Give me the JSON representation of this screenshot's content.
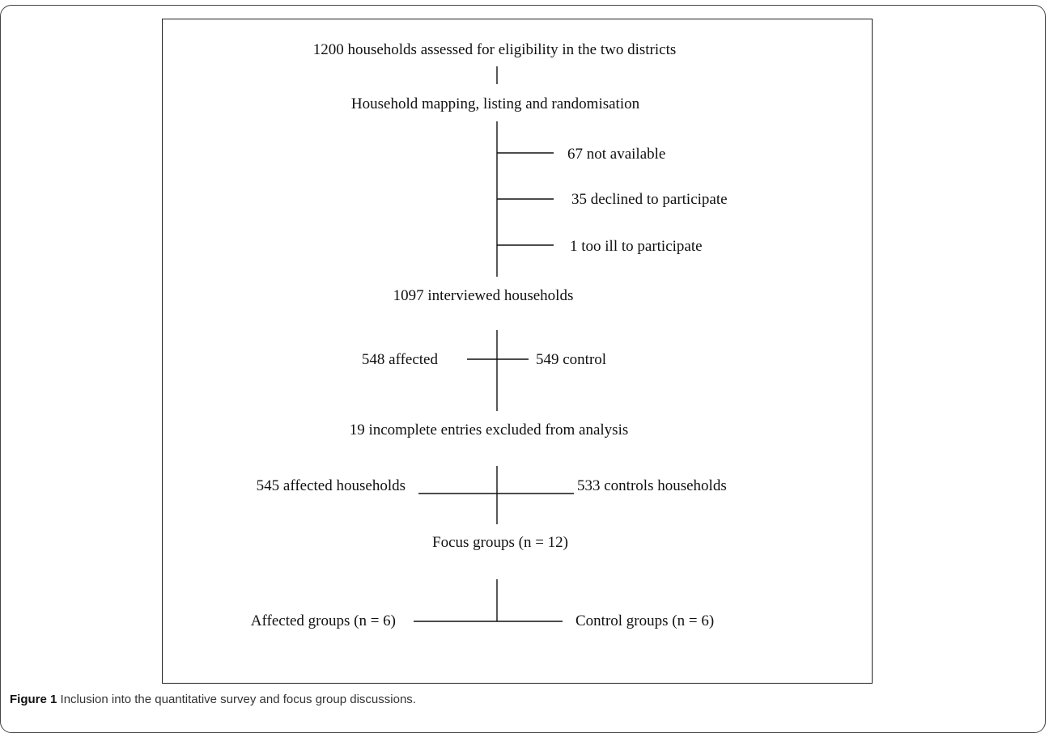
{
  "nodes": {
    "assessed": "1200 households assessed for eligibility in the two districts",
    "mapping": "Household mapping, listing and randomisation",
    "not_available": "67 not available",
    "declined": "35 declined to participate",
    "too_ill": "1 too ill to participate",
    "interviewed": "1097 interviewed households",
    "affected": "548 affected",
    "control": "549 control",
    "incomplete": "19 incomplete entries excluded from analysis",
    "affected_households": "545 affected households",
    "control_households": "533 controls households",
    "focus_groups": "Focus groups (n = 12)",
    "affected_groups": "Affected groups (n = 6)",
    "control_groups": "Control groups (n = 6)"
  },
  "caption": {
    "label": "Figure 1",
    "text": " Inclusion into the quantitative survey and focus group discussions."
  }
}
